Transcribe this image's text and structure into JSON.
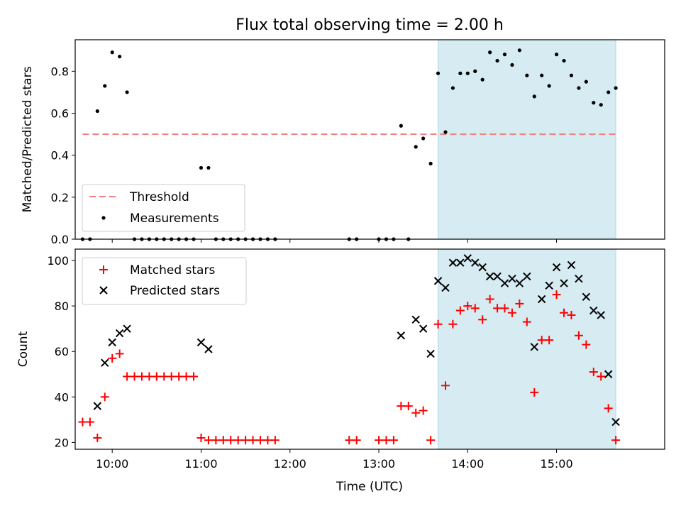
{
  "chart_data": {
    "title": "Flux total observing time = 2.00 h",
    "xlabel": "Time (UTC)",
    "x_unit": "hours UTC",
    "xlim": [
      "09:35",
      "16:13"
    ],
    "x_ticks": [
      "10:00",
      "11:00",
      "12:00",
      "13:00",
      "14:00",
      "15:00"
    ],
    "highlight": {
      "x_start": "13:40",
      "x_end": "15:40",
      "color": "#add8e6"
    },
    "top": {
      "type": "scatter",
      "ylabel": "Matched/Predicted stars",
      "ylim": [
        0,
        0.95
      ],
      "y_ticks": [
        "0.0",
        "0.2",
        "0.4",
        "0.6",
        "0.8"
      ],
      "threshold": {
        "name": "Threshold",
        "value": 0.5,
        "x_start": "09:40",
        "x_end": "15:40",
        "color": "#f08080"
      },
      "legend": [
        "Threshold",
        "Measurements"
      ],
      "series": [
        {
          "name": "Measurements",
          "color": "#000000",
          "points": [
            [
              "09:40",
              0.0
            ],
            [
              "09:45",
              0.0
            ],
            [
              "09:50",
              0.61
            ],
            [
              "09:55",
              0.73
            ],
            [
              "10:00",
              0.89
            ],
            [
              "10:05",
              0.87
            ],
            [
              "10:10",
              0.7
            ],
            [
              "10:15",
              0.0
            ],
            [
              "10:20",
              0.0
            ],
            [
              "10:25",
              0.0
            ],
            [
              "10:30",
              0.0
            ],
            [
              "10:35",
              0.0
            ],
            [
              "10:40",
              0.0
            ],
            [
              "10:45",
              0.0
            ],
            [
              "10:50",
              0.0
            ],
            [
              "10:55",
              0.0
            ],
            [
              "11:00",
              0.34
            ],
            [
              "11:05",
              0.34
            ],
            [
              "11:10",
              0.0
            ],
            [
              "11:15",
              0.0
            ],
            [
              "11:20",
              0.0
            ],
            [
              "11:25",
              0.0
            ],
            [
              "11:30",
              0.0
            ],
            [
              "11:35",
              0.0
            ],
            [
              "11:40",
              0.0
            ],
            [
              "11:45",
              0.0
            ],
            [
              "11:50",
              0.0
            ],
            [
              "12:40",
              0.0
            ],
            [
              "12:45",
              0.0
            ],
            [
              "13:00",
              0.0
            ],
            [
              "13:05",
              0.0
            ],
            [
              "13:10",
              0.0
            ],
            [
              "13:15",
              0.54
            ],
            [
              "13:20",
              0.0
            ],
            [
              "13:25",
              0.44
            ],
            [
              "13:30",
              0.48
            ],
            [
              "13:35",
              0.36
            ],
            [
              "13:40",
              0.79
            ],
            [
              "13:45",
              0.51
            ],
            [
              "13:50",
              0.72
            ],
            [
              "13:55",
              0.79
            ],
            [
              "14:00",
              0.79
            ],
            [
              "14:05",
              0.8
            ],
            [
              "14:10",
              0.76
            ],
            [
              "14:15",
              0.89
            ],
            [
              "14:20",
              0.85
            ],
            [
              "14:25",
              0.88
            ],
            [
              "14:30",
              0.83
            ],
            [
              "14:35",
              0.9
            ],
            [
              "14:40",
              0.78
            ],
            [
              "14:45",
              0.68
            ],
            [
              "14:50",
              0.78
            ],
            [
              "14:55",
              0.73
            ],
            [
              "15:00",
              0.88
            ],
            [
              "15:05",
              0.85
            ],
            [
              "15:10",
              0.78
            ],
            [
              "15:15",
              0.72
            ],
            [
              "15:20",
              0.75
            ],
            [
              "15:25",
              0.65
            ],
            [
              "15:30",
              0.64
            ],
            [
              "15:35",
              0.7
            ],
            [
              "15:40",
              0.72
            ]
          ]
        }
      ]
    },
    "bottom": {
      "type": "scatter",
      "ylabel": "Count",
      "ylim": [
        17,
        105
      ],
      "y_ticks": [
        "20",
        "40",
        "60",
        "80",
        "100"
      ],
      "legend": [
        "Matched stars",
        "Predicted stars"
      ],
      "series": [
        {
          "name": "Matched stars",
          "marker": "+",
          "color": "#ff0000",
          "points": [
            [
              "09:40",
              29
            ],
            [
              "09:45",
              29
            ],
            [
              "09:50",
              22
            ],
            [
              "09:55",
              40
            ],
            [
              "10:00",
              57
            ],
            [
              "10:05",
              59
            ],
            [
              "10:10",
              49
            ],
            [
              "10:15",
              49
            ],
            [
              "10:20",
              49
            ],
            [
              "10:25",
              49
            ],
            [
              "10:30",
              49
            ],
            [
              "10:35",
              49
            ],
            [
              "10:40",
              49
            ],
            [
              "10:45",
              49
            ],
            [
              "10:50",
              49
            ],
            [
              "10:55",
              49
            ],
            [
              "11:00",
              22
            ],
            [
              "11:05",
              21
            ],
            [
              "11:10",
              21
            ],
            [
              "11:15",
              21
            ],
            [
              "11:20",
              21
            ],
            [
              "11:25",
              21
            ],
            [
              "11:30",
              21
            ],
            [
              "11:35",
              21
            ],
            [
              "11:40",
              21
            ],
            [
              "11:45",
              21
            ],
            [
              "11:50",
              21
            ],
            [
              "12:40",
              21
            ],
            [
              "12:45",
              21
            ],
            [
              "13:00",
              21
            ],
            [
              "13:05",
              21
            ],
            [
              "13:10",
              21
            ],
            [
              "13:15",
              36
            ],
            [
              "13:20",
              36
            ],
            [
              "13:25",
              33
            ],
            [
              "13:30",
              34
            ],
            [
              "13:35",
              21
            ],
            [
              "13:40",
              72
            ],
            [
              "13:45",
              45
            ],
            [
              "13:50",
              72
            ],
            [
              "13:55",
              78
            ],
            [
              "14:00",
              80
            ],
            [
              "14:05",
              79
            ],
            [
              "14:10",
              74
            ],
            [
              "14:15",
              83
            ],
            [
              "14:20",
              79
            ],
            [
              "14:25",
              79
            ],
            [
              "14:30",
              77
            ],
            [
              "14:35",
              81
            ],
            [
              "14:40",
              73
            ],
            [
              "14:45",
              42
            ],
            [
              "14:50",
              65
            ],
            [
              "14:55",
              65
            ],
            [
              "15:00",
              85
            ],
            [
              "15:05",
              77
            ],
            [
              "15:10",
              76
            ],
            [
              "15:15",
              67
            ],
            [
              "15:20",
              63
            ],
            [
              "15:25",
              51
            ],
            [
              "15:30",
              49
            ],
            [
              "15:35",
              35
            ],
            [
              "15:40",
              21
            ]
          ]
        },
        {
          "name": "Predicted stars",
          "marker": "x",
          "color": "#000000",
          "points": [
            [
              "09:50",
              36
            ],
            [
              "09:55",
              55
            ],
            [
              "10:00",
              64
            ],
            [
              "10:05",
              68
            ],
            [
              "10:10",
              70
            ],
            [
              "11:00",
              64
            ],
            [
              "11:05",
              61
            ],
            [
              "13:15",
              67
            ],
            [
              "13:25",
              74
            ],
            [
              "13:30",
              70
            ],
            [
              "13:35",
              59
            ],
            [
              "13:40",
              91
            ],
            [
              "13:45",
              88
            ],
            [
              "13:50",
              99
            ],
            [
              "13:55",
              99
            ],
            [
              "14:00",
              101
            ],
            [
              "14:05",
              99
            ],
            [
              "14:10",
              97
            ],
            [
              "14:15",
              93
            ],
            [
              "14:20",
              93
            ],
            [
              "14:25",
              90
            ],
            [
              "14:30",
              92
            ],
            [
              "14:35",
              90
            ],
            [
              "14:40",
              93
            ],
            [
              "14:45",
              62
            ],
            [
              "14:50",
              83
            ],
            [
              "14:55",
              89
            ],
            [
              "15:00",
              97
            ],
            [
              "15:05",
              90
            ],
            [
              "15:10",
              98
            ],
            [
              "15:15",
              92
            ],
            [
              "15:20",
              84
            ],
            [
              "15:25",
              78
            ],
            [
              "15:30",
              76
            ],
            [
              "15:35",
              50
            ],
            [
              "15:40",
              29
            ]
          ]
        }
      ]
    }
  }
}
